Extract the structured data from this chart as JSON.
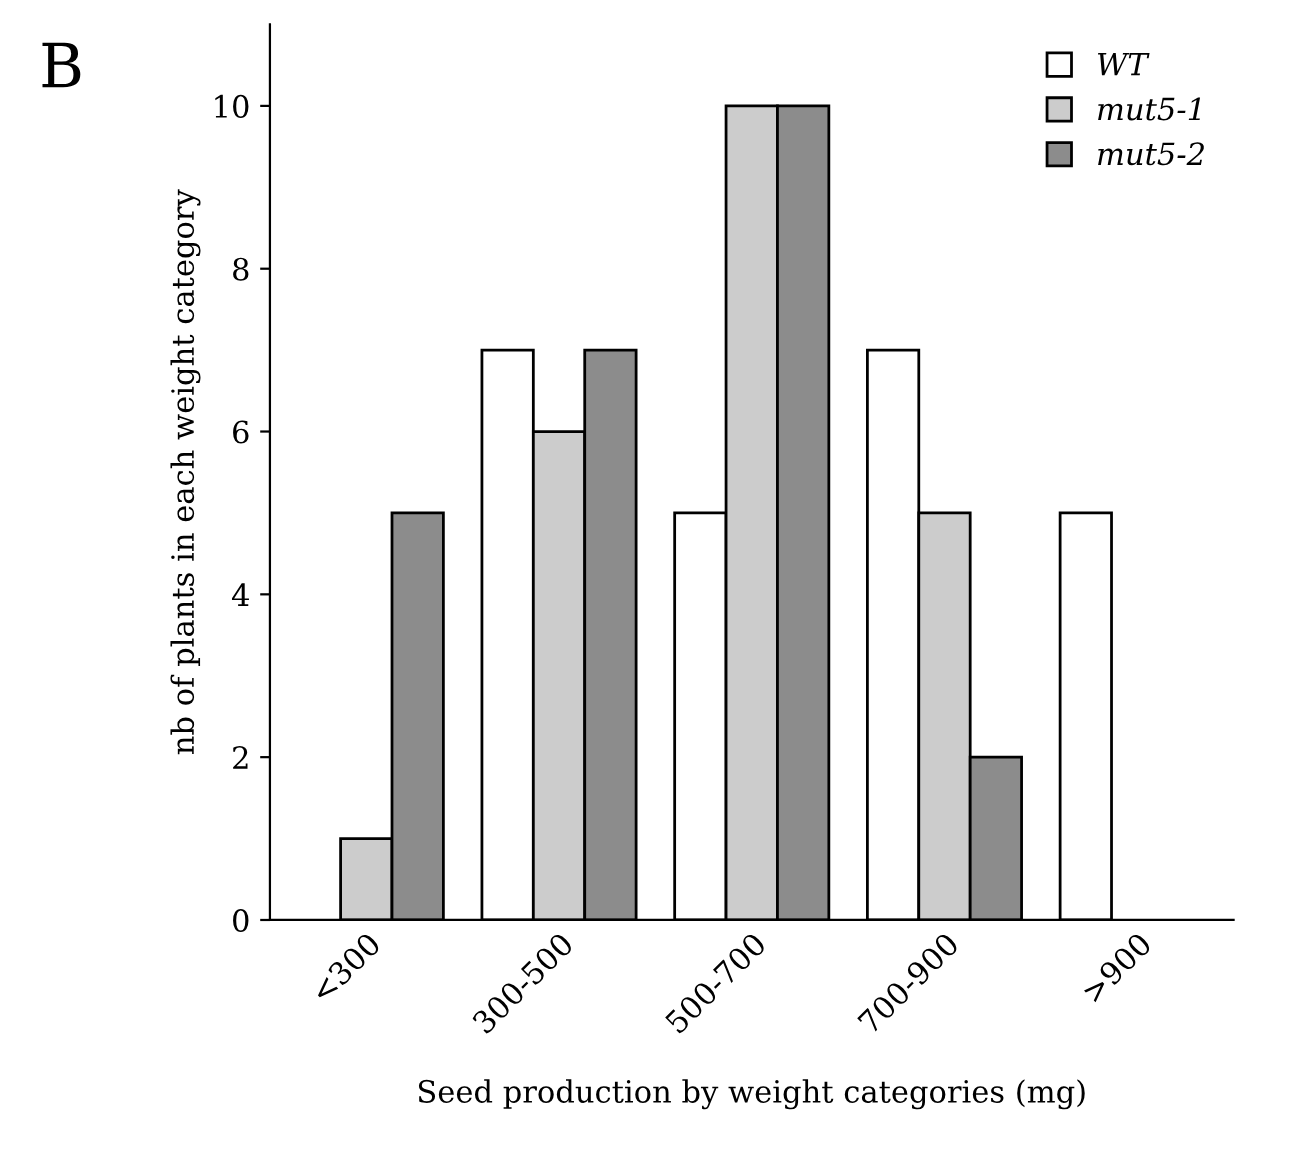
{
  "chart_data": {
    "type": "bar",
    "xlabel": "Seed production by weight categories (mg)",
    "ylabel": "nb of plants in each weight category",
    "categories": [
      "<300",
      "300-500",
      "500-700",
      "700-900",
      ">900"
    ],
    "series": [
      {
        "name": "WT",
        "color": "#ffffff",
        "values": [
          0,
          7,
          5,
          7,
          5
        ]
      },
      {
        "name": "mut5-1",
        "color": "#cccccc",
        "values": [
          1,
          6,
          10,
          5,
          0
        ]
      },
      {
        "name": "mut5-2",
        "color": "#8c8c8c",
        "values": [
          5,
          7,
          10,
          2,
          0
        ]
      }
    ],
    "ylim": [
      0,
      11
    ],
    "yticks": [
      0,
      2,
      4,
      6,
      8,
      10
    ],
    "grid": false,
    "legend": "top right",
    "annotations": [
      "B"
    ]
  }
}
